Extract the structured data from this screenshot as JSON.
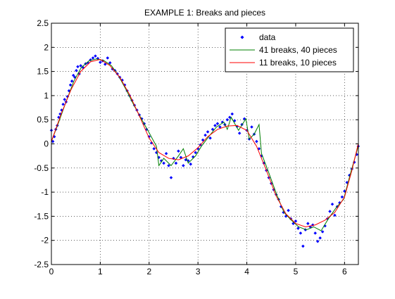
{
  "chart_data": {
    "type": "scatter",
    "title": "EXAMPLE 1: Breaks and pieces",
    "xlabel": "",
    "ylabel": "",
    "xlim": [
      0,
      6.2832
    ],
    "ylim": [
      -2.5,
      2.5
    ],
    "xticks": [
      0,
      1,
      2,
      3,
      4,
      5,
      6
    ],
    "yticks": [
      -2.5,
      -2,
      -1.5,
      -1,
      -0.5,
      0,
      0.5,
      1,
      1.5,
      2,
      2.5
    ],
    "xtick_labels": [
      "0",
      "1",
      "2",
      "3",
      "4",
      "5",
      "6"
    ],
    "ytick_labels": [
      "-2.5",
      "-2",
      "-1.5",
      "-1",
      "-0.5",
      "0",
      "0.5",
      "1",
      "1.5",
      "2",
      "2.5"
    ],
    "grid": true,
    "legend_position": "top-right",
    "series": [
      {
        "name": "data",
        "style": "markers",
        "color": "#0000ff",
        "points": [
          [
            0.0,
            0.28
          ],
          [
            0.03,
            0.05
          ],
          [
            0.06,
            0.15
          ],
          [
            0.09,
            0.3
          ],
          [
            0.12,
            0.38
          ],
          [
            0.15,
            0.55
          ],
          [
            0.18,
            0.62
          ],
          [
            0.21,
            0.7
          ],
          [
            0.24,
            0.82
          ],
          [
            0.27,
            0.92
          ],
          [
            0.3,
            0.87
          ],
          [
            0.33,
            0.98
          ],
          [
            0.36,
            1.1
          ],
          [
            0.39,
            1.22
          ],
          [
            0.42,
            1.3
          ],
          [
            0.45,
            1.42
          ],
          [
            0.48,
            1.38
          ],
          [
            0.51,
            1.52
          ],
          [
            0.54,
            1.6
          ],
          [
            0.57,
            1.45
          ],
          [
            0.6,
            1.62
          ],
          [
            0.65,
            1.58
          ],
          [
            0.7,
            1.66
          ],
          [
            0.75,
            1.68
          ],
          [
            0.8,
            1.74
          ],
          [
            0.85,
            1.78
          ],
          [
            0.9,
            1.82
          ],
          [
            0.95,
            1.77
          ],
          [
            1.0,
            1.69
          ],
          [
            1.05,
            1.72
          ],
          [
            1.1,
            1.65
          ],
          [
            1.15,
            1.78
          ],
          [
            1.2,
            1.68
          ],
          [
            1.25,
            1.55
          ],
          [
            1.3,
            1.52
          ],
          [
            1.35,
            1.45
          ],
          [
            1.4,
            1.38
          ],
          [
            1.45,
            1.32
          ],
          [
            1.5,
            1.22
          ],
          [
            1.55,
            1.1
          ],
          [
            1.6,
            1.0
          ],
          [
            1.65,
            0.9
          ],
          [
            1.7,
            0.8
          ],
          [
            1.75,
            0.7
          ],
          [
            1.8,
            0.6
          ],
          [
            1.85,
            0.52
          ],
          [
            1.9,
            0.42
          ],
          [
            1.95,
            0.3
          ],
          [
            2.0,
            0.15
          ],
          [
            2.05,
            0.02
          ],
          [
            2.1,
            -0.1
          ],
          [
            2.15,
            -0.18
          ],
          [
            2.2,
            -0.28
          ],
          [
            2.25,
            -0.35
          ],
          [
            2.3,
            -0.4
          ],
          [
            2.35,
            -0.2
          ],
          [
            2.4,
            -0.45
          ],
          [
            2.45,
            -0.7
          ],
          [
            2.5,
            -0.3
          ],
          [
            2.55,
            -0.4
          ],
          [
            2.6,
            -0.15
          ],
          [
            2.65,
            -0.28
          ],
          [
            2.7,
            -0.45
          ],
          [
            2.75,
            -0.33
          ],
          [
            2.8,
            -0.35
          ],
          [
            2.85,
            -0.42
          ],
          [
            2.9,
            -0.27
          ],
          [
            2.95,
            -0.18
          ],
          [
            3.0,
            -0.1
          ],
          [
            3.05,
            -0.02
          ],
          [
            3.1,
            0.08
          ],
          [
            3.15,
            0.18
          ],
          [
            3.2,
            0.25
          ],
          [
            3.25,
            0.12
          ],
          [
            3.3,
            0.3
          ],
          [
            3.35,
            0.38
          ],
          [
            3.4,
            0.42
          ],
          [
            3.45,
            0.35
          ],
          [
            3.5,
            0.45
          ],
          [
            3.55,
            0.4
          ],
          [
            3.6,
            0.5
          ],
          [
            3.65,
            0.55
          ],
          [
            3.7,
            0.62
          ],
          [
            3.75,
            0.48
          ],
          [
            3.8,
            0.36
          ],
          [
            3.85,
            0.22
          ],
          [
            3.9,
            0.4
          ],
          [
            3.95,
            0.52
          ],
          [
            4.0,
            0.28
          ],
          [
            4.05,
            0.1
          ],
          [
            4.1,
            0.35
          ],
          [
            4.15,
            0.2
          ],
          [
            4.2,
            0.05
          ],
          [
            4.25,
            -0.1
          ],
          [
            4.3,
            -0.25
          ],
          [
            4.35,
            -0.4
          ],
          [
            4.4,
            -0.55
          ],
          [
            4.45,
            -0.7
          ],
          [
            4.5,
            -0.82
          ],
          [
            4.55,
            -0.95
          ],
          [
            4.6,
            -1.05
          ],
          [
            4.65,
            -1.15
          ],
          [
            4.7,
            -1.3
          ],
          [
            4.75,
            -1.42
          ],
          [
            4.8,
            -1.5
          ],
          [
            4.85,
            -1.38
          ],
          [
            4.9,
            -1.55
          ],
          [
            4.95,
            -1.65
          ],
          [
            5.0,
            -1.6
          ],
          [
            5.05,
            -1.75
          ],
          [
            5.1,
            -1.85
          ],
          [
            5.15,
            -2.12
          ],
          [
            5.2,
            -1.78
          ],
          [
            5.25,
            -1.65
          ],
          [
            5.3,
            -1.72
          ],
          [
            5.35,
            -1.68
          ],
          [
            5.4,
            -1.85
          ],
          [
            5.45,
            -2.02
          ],
          [
            5.5,
            -1.95
          ],
          [
            5.55,
            -1.82
          ],
          [
            5.6,
            -1.7
          ],
          [
            5.65,
            -1.55
          ],
          [
            5.7,
            -1.4
          ],
          [
            5.75,
            -1.25
          ],
          [
            5.8,
            -1.48
          ],
          [
            5.85,
            -1.3
          ],
          [
            5.9,
            -1.22
          ],
          [
            5.95,
            -1.1
          ],
          [
            6.0,
            -0.98
          ],
          [
            6.05,
            -0.8
          ],
          [
            6.1,
            -0.65
          ],
          [
            6.15,
            -0.52
          ],
          [
            6.2,
            -0.38
          ],
          [
            6.25,
            -0.22
          ],
          [
            6.28,
            -0.05
          ]
        ]
      },
      {
        "name": "41 breaks, 40 pieces",
        "style": "line",
        "color": "#007f00",
        "points": [
          [
            0.0,
            0.05
          ],
          [
            0.15,
            0.45
          ],
          [
            0.31,
            0.9
          ],
          [
            0.46,
            1.3
          ],
          [
            0.61,
            1.58
          ],
          [
            0.77,
            1.72
          ],
          [
            0.92,
            1.76
          ],
          [
            1.07,
            1.73
          ],
          [
            1.23,
            1.62
          ],
          [
            1.38,
            1.4
          ],
          [
            1.53,
            1.12
          ],
          [
            1.69,
            0.8
          ],
          [
            1.84,
            0.52
          ],
          [
            1.99,
            0.25
          ],
          [
            2.15,
            -0.05
          ],
          [
            2.2,
            -0.45
          ],
          [
            2.3,
            -0.3
          ],
          [
            2.45,
            -0.45
          ],
          [
            2.6,
            -0.25
          ],
          [
            2.7,
            -0.1
          ],
          [
            2.8,
            -0.4
          ],
          [
            2.95,
            -0.25
          ],
          [
            3.07,
            -0.05
          ],
          [
            3.22,
            0.15
          ],
          [
            3.38,
            0.35
          ],
          [
            3.53,
            0.45
          ],
          [
            3.6,
            0.3
          ],
          [
            3.68,
            0.55
          ],
          [
            3.83,
            0.28
          ],
          [
            3.98,
            0.52
          ],
          [
            4.05,
            0.1
          ],
          [
            4.15,
            0.2
          ],
          [
            4.25,
            0.4
          ],
          [
            4.3,
            -0.2
          ],
          [
            4.45,
            -0.6
          ],
          [
            4.6,
            -1.02
          ],
          [
            4.76,
            -1.42
          ],
          [
            4.91,
            -1.58
          ],
          [
            5.06,
            -1.72
          ],
          [
            5.22,
            -1.78
          ],
          [
            5.37,
            -1.72
          ],
          [
            5.52,
            -1.8
          ],
          [
            5.67,
            -1.55
          ],
          [
            5.83,
            -1.32
          ],
          [
            5.98,
            -1.15
          ],
          [
            6.13,
            -0.58
          ],
          [
            6.28,
            -0.05
          ]
        ]
      },
      {
        "name": "11 breaks, 10 pieces",
        "style": "line",
        "color": "#ff0000",
        "points": [
          [
            0.0,
            0.05
          ],
          [
            0.2,
            0.62
          ],
          [
            0.4,
            1.12
          ],
          [
            0.6,
            1.5
          ],
          [
            0.8,
            1.7
          ],
          [
            1.0,
            1.75
          ],
          [
            1.2,
            1.62
          ],
          [
            1.4,
            1.38
          ],
          [
            1.6,
            1.02
          ],
          [
            1.8,
            0.58
          ],
          [
            2.0,
            0.12
          ],
          [
            2.2,
            -0.18
          ],
          [
            2.4,
            -0.3
          ],
          [
            2.6,
            -0.33
          ],
          [
            2.8,
            -0.25
          ],
          [
            3.0,
            -0.08
          ],
          [
            3.2,
            0.15
          ],
          [
            3.4,
            0.3
          ],
          [
            3.6,
            0.37
          ],
          [
            3.8,
            0.38
          ],
          [
            4.0,
            0.28
          ],
          [
            4.2,
            -0.05
          ],
          [
            4.4,
            -0.55
          ],
          [
            4.6,
            -1.08
          ],
          [
            4.8,
            -1.45
          ],
          [
            5.0,
            -1.65
          ],
          [
            5.2,
            -1.72
          ],
          [
            5.4,
            -1.68
          ],
          [
            5.6,
            -1.58
          ],
          [
            5.8,
            -1.42
          ],
          [
            6.0,
            -1.1
          ],
          [
            6.15,
            -0.55
          ],
          [
            6.28,
            0.0
          ]
        ]
      }
    ]
  }
}
